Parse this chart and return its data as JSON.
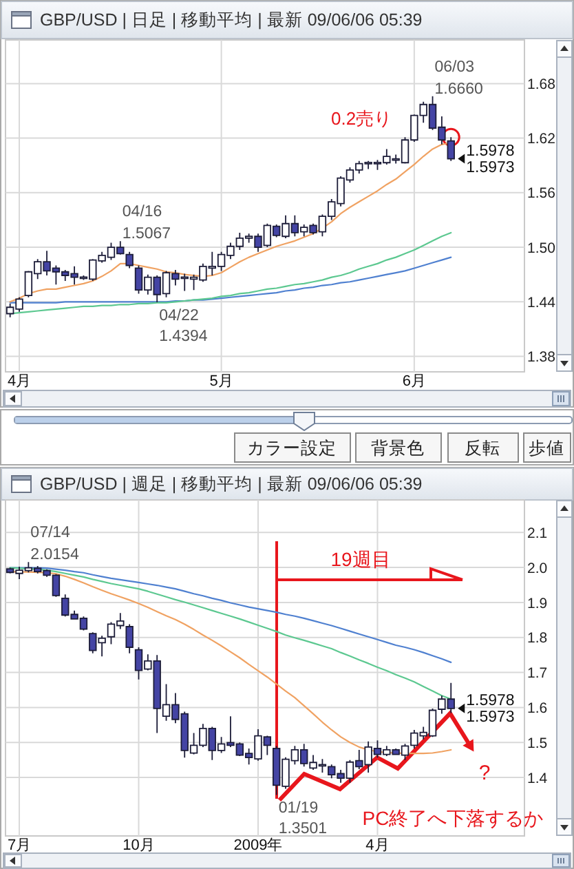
{
  "chart_data": [
    {
      "type": "candlestick",
      "title": "GBP/USD | 日足 | 移動平均 | 最新 09/06/06 05:39",
      "categories": [
        null,
        "4月",
        null,
        null,
        null,
        null,
        null,
        null,
        null,
        null,
        null,
        null,
        null,
        null,
        null,
        null,
        null,
        null,
        null,
        null,
        null,
        null,
        null,
        "5月",
        null,
        null,
        null,
        null,
        null,
        null,
        null,
        null,
        null,
        null,
        null,
        null,
        null,
        null,
        null,
        null,
        null,
        null,
        null,
        null,
        "6月",
        null,
        null,
        null,
        null
      ],
      "ohlc": [
        [
          1.427,
          1.438,
          1.423,
          1.434
        ],
        [
          1.432,
          1.445,
          1.429,
          1.443
        ],
        [
          1.447,
          1.474,
          1.445,
          1.473
        ],
        [
          1.471,
          1.487,
          1.465,
          1.484
        ],
        [
          1.484,
          1.496,
          1.469,
          1.474
        ],
        [
          1.477,
          1.48,
          1.459,
          1.473
        ],
        [
          1.473,
          1.475,
          1.463,
          1.469
        ],
        [
          1.471,
          1.479,
          1.459,
          1.467
        ],
        [
          1.466,
          1.469,
          1.464,
          1.467
        ],
        [
          1.465,
          1.487,
          1.463,
          1.486
        ],
        [
          1.485,
          1.495,
          1.483,
          1.491
        ],
        [
          1.489,
          1.505,
          1.486,
          1.5
        ],
        [
          1.5,
          1.5067,
          1.492,
          1.493
        ],
        [
          1.492,
          1.495,
          1.477,
          1.48
        ],
        [
          1.477,
          1.48,
          1.449,
          1.453
        ],
        [
          1.453,
          1.47,
          1.448,
          1.467
        ],
        [
          1.467,
          1.469,
          1.4394,
          1.448
        ],
        [
          1.449,
          1.474,
          1.445,
          1.472
        ],
        [
          1.471,
          1.475,
          1.458,
          1.465
        ],
        [
          1.466,
          1.471,
          1.452,
          1.467
        ],
        [
          1.465,
          1.47,
          1.453,
          1.467
        ],
        [
          1.464,
          1.482,
          1.462,
          1.479
        ],
        [
          1.477,
          1.495,
          1.469,
          1.479
        ],
        [
          1.479,
          1.495,
          1.474,
          1.492
        ],
        [
          1.491,
          1.505,
          1.487,
          1.501
        ],
        [
          1.501,
          1.516,
          1.497,
          1.51
        ],
        [
          1.51,
          1.515,
          1.505,
          1.512
        ],
        [
          1.512,
          1.515,
          1.495,
          1.5
        ],
        [
          1.502,
          1.526,
          1.5,
          1.524
        ],
        [
          1.523,
          1.525,
          1.511,
          1.513
        ],
        [
          1.512,
          1.535,
          1.51,
          1.526
        ],
        [
          1.526,
          1.535,
          1.512,
          1.516
        ],
        [
          1.517,
          1.525,
          1.512,
          1.522
        ],
        [
          1.524,
          1.526,
          1.514,
          1.516
        ],
        [
          1.517,
          1.536,
          1.512,
          1.534
        ],
        [
          1.534,
          1.553,
          1.53,
          1.55
        ],
        [
          1.548,
          1.578,
          1.545,
          1.576
        ],
        [
          1.574,
          1.588,
          1.571,
          1.585
        ],
        [
          1.585,
          1.595,
          1.581,
          1.592
        ],
        [
          1.592,
          1.595,
          1.586,
          1.593
        ],
        [
          1.592,
          1.596,
          1.585,
          1.593
        ],
        [
          1.593,
          1.608,
          1.591,
          1.6
        ],
        [
          1.596,
          1.602,
          1.592,
          1.597
        ],
        [
          1.593,
          1.621,
          1.592,
          1.618
        ],
        [
          1.618,
          1.646,
          1.616,
          1.645
        ],
        [
          1.645,
          1.66,
          1.637,
          1.657
        ],
        [
          1.657,
          1.666,
          1.629,
          1.631
        ],
        [
          1.632,
          1.644,
          1.613,
          1.618
        ],
        [
          1.617,
          1.621,
          1.595,
          1.5973
        ]
      ],
      "colors": [
        "#ffffff",
        "#ffffff",
        "#ffffff",
        "#ffffff",
        "#4444a4",
        "#4444a4",
        "#4444a4",
        "#4444a4",
        "#ffffff",
        "#ffffff",
        "#ffffff",
        "#ffffff",
        "#4444a4",
        "#4444a4",
        "#4444a4",
        "#ffffff",
        "#4444a4",
        "#ffffff",
        "#4444a4",
        "#ffffff",
        "#ffffff",
        "#ffffff",
        "#ffffff",
        "#ffffff",
        "#ffffff",
        "#ffffff",
        "#ffffff",
        "#4444a4",
        "#ffffff",
        "#4444a4",
        "#ffffff",
        "#4444a4",
        "#ffffff",
        "#4444a4",
        "#ffffff",
        "#ffffff",
        "#ffffff",
        "#ffffff",
        "#ffffff",
        "#ffffff",
        "#ffffff",
        "#ffffff",
        "#ffffff",
        "#ffffff",
        "#ffffff",
        "#ffffff",
        "#4444a4",
        "#4444a4",
        "#4444a4"
      ],
      "series": [
        {
          "type": "line",
          "color": "#4f80d0",
          "values": [
            1.439,
            1.439,
            1.439,
            1.439,
            1.439,
            1.439,
            1.44,
            1.44,
            1.44,
            1.44,
            1.44,
            1.44,
            1.44,
            1.44,
            1.44,
            1.44,
            1.44,
            1.44,
            1.441,
            1.441,
            1.442,
            1.442,
            1.443,
            1.444,
            1.445,
            1.446,
            1.447,
            1.448,
            1.449,
            1.45,
            1.452,
            1.453,
            1.455,
            1.456,
            1.458,
            1.459,
            1.461,
            1.462,
            1.464,
            1.466,
            1.468,
            1.47,
            1.472,
            1.474,
            1.477,
            1.48,
            1.483,
            1.486,
            1.489
          ]
        },
        {
          "type": "line",
          "color": "#5cc890",
          "values": [
            1.427,
            1.428,
            1.429,
            1.43,
            1.431,
            1.432,
            1.433,
            1.434,
            1.435,
            1.435,
            1.436,
            1.436,
            1.437,
            1.437,
            1.438,
            1.438,
            1.439,
            1.439,
            1.44,
            1.441,
            1.442,
            1.443,
            1.444,
            1.446,
            1.447,
            1.449,
            1.45,
            1.452,
            1.454,
            1.455,
            1.457,
            1.459,
            1.46,
            1.462,
            1.464,
            1.467,
            1.469,
            1.472,
            1.476,
            1.479,
            1.482,
            1.486,
            1.489,
            1.493,
            1.497,
            1.502,
            1.507,
            1.512,
            1.516
          ]
        },
        {
          "type": "line",
          "color": "#f0a262",
          "values": [
            1.44,
            1.444,
            1.449,
            1.452,
            1.454,
            1.454,
            1.456,
            1.458,
            1.46,
            1.463,
            1.468,
            1.474,
            1.482,
            1.482,
            1.48,
            1.478,
            1.476,
            1.473,
            1.472,
            1.47,
            1.469,
            1.468,
            1.469,
            1.472,
            1.478,
            1.484,
            1.489,
            1.493,
            1.497,
            1.501,
            1.504,
            1.507,
            1.511,
            1.515,
            1.521,
            1.528,
            1.537,
            1.544,
            1.55,
            1.556,
            1.562,
            1.569,
            1.575,
            1.583,
            1.591,
            1.6,
            1.608,
            1.613,
            1.615
          ]
        }
      ],
      "ylim": [
        1.363,
        1.728
      ],
      "yticks": [
        1.38,
        1.44,
        {
          "value": 1.5,
          "label": "1.50"
        },
        1.56,
        1.62,
        1.68
      ],
      "grid": true,
      "annotations": [
        "04/16\n1.5067",
        "04/22\n1.4394",
        "06/03\n1.6660",
        "0.2売り",
        "1.5978",
        "1.5973"
      ]
    },
    {
      "type": "other",
      "annotations": [
        "カラー設定",
        "背景色",
        "反転",
        "歩値"
      ]
    },
    {
      "type": "candlestick",
      "title": "GBP/USD | 週足 | 移動平均 | 最新 09/06/06 05:39",
      "categories": [
        null,
        "7月",
        null,
        null,
        null,
        null,
        null,
        null,
        null,
        null,
        null,
        null,
        null,
        null,
        "10月",
        null,
        null,
        null,
        null,
        null,
        null,
        null,
        null,
        null,
        null,
        null,
        null,
        "2009年",
        null,
        null,
        null,
        null,
        null,
        null,
        null,
        null,
        null,
        null,
        null,
        null,
        "4月",
        null,
        null,
        null,
        null,
        null,
        null,
        null,
        null
      ],
      "ohlc": [
        [
          1.996,
          1.999,
          1.983,
          1.986
        ],
        [
          1.983,
          2.002,
          1.967,
          1.992
        ],
        [
          1.991,
          2.0154,
          1.986,
          1.999
        ],
        [
          1.998,
          2.004,
          1.983,
          1.988
        ],
        [
          1.991,
          1.995,
          1.973,
          1.978
        ],
        [
          1.978,
          1.981,
          1.916,
          1.92
        ],
        [
          1.912,
          1.923,
          1.86,
          1.864
        ],
        [
          1.866,
          1.877,
          1.851,
          1.853
        ],
        [
          1.855,
          1.86,
          1.82,
          1.824
        ],
        [
          1.811,
          1.815,
          1.755,
          1.763
        ],
        [
          1.785,
          1.805,
          1.746,
          1.798
        ],
        [
          1.802,
          1.844,
          1.781,
          1.838
        ],
        [
          1.834,
          1.87,
          1.824,
          1.847
        ],
        [
          1.831,
          1.838,
          1.755,
          1.772
        ],
        [
          1.765,
          1.772,
          1.68,
          1.706
        ],
        [
          1.71,
          1.752,
          1.706,
          1.733
        ],
        [
          1.733,
          1.75,
          1.527,
          1.597
        ],
        [
          1.575,
          1.667,
          1.562,
          1.608
        ],
        [
          1.608,
          1.641,
          1.555,
          1.566
        ],
        [
          1.582,
          1.588,
          1.457,
          1.477
        ],
        [
          1.47,
          1.527,
          1.466,
          1.492
        ],
        [
          1.492,
          1.553,
          1.487,
          1.54
        ],
        [
          1.54,
          1.545,
          1.45,
          1.477
        ],
        [
          1.477,
          1.516,
          1.47,
          1.496
        ],
        [
          1.5,
          1.575,
          1.487,
          1.492
        ],
        [
          1.496,
          1.5,
          1.461,
          1.464
        ],
        [
          1.469,
          1.483,
          1.437,
          1.457
        ],
        [
          1.453,
          1.538,
          1.448,
          1.519
        ],
        [
          1.516,
          1.519,
          1.464,
          1.492
        ],
        [
          1.483,
          1.49,
          1.3501,
          1.378
        ],
        [
          1.375,
          1.458,
          1.368,
          1.452
        ],
        [
          1.448,
          1.49,
          1.437,
          1.479
        ],
        [
          1.479,
          1.496,
          1.431,
          1.44
        ],
        [
          1.427,
          1.464,
          1.422,
          1.443
        ],
        [
          1.433,
          1.453,
          1.414,
          1.437
        ],
        [
          1.431,
          1.437,
          1.398,
          1.408
        ],
        [
          1.411,
          1.422,
          1.385,
          1.398
        ],
        [
          1.398,
          1.45,
          1.385,
          1.444
        ],
        [
          1.448,
          1.479,
          1.424,
          1.431
        ],
        [
          1.437,
          1.503,
          1.414,
          1.487
        ],
        [
          1.483,
          1.506,
          1.457,
          1.466
        ],
        [
          1.466,
          1.49,
          1.461,
          1.479
        ],
        [
          1.479,
          1.483,
          1.464,
          1.466
        ],
        [
          1.464,
          1.496,
          1.45,
          1.49
        ],
        [
          1.492,
          1.536,
          1.483,
          1.527
        ],
        [
          1.519,
          1.545,
          1.509,
          1.529
        ],
        [
          1.519,
          1.597,
          1.516,
          1.592
        ],
        [
          1.595,
          1.634,
          1.582,
          1.624
        ],
        [
          1.624,
          1.67,
          1.584,
          1.5973
        ]
      ],
      "colors": [
        "#4444a4",
        "#ffffff",
        "#ffffff",
        "#4444a4",
        "#4444a4",
        "#4444a4",
        "#4444a4",
        "#4444a4",
        "#4444a4",
        "#4444a4",
        "#ffffff",
        "#ffffff",
        "#ffffff",
        "#4444a4",
        "#4444a4",
        "#ffffff",
        "#4444a4",
        "#ffffff",
        "#4444a4",
        "#4444a4",
        "#ffffff",
        "#ffffff",
        "#4444a4",
        "#ffffff",
        "#4444a4",
        "#4444a4",
        "#4444a4",
        "#ffffff",
        "#4444a4",
        "#4444a4",
        "#ffffff",
        "#ffffff",
        "#4444a4",
        "#ffffff",
        "#ffffff",
        "#4444a4",
        "#4444a4",
        "#ffffff",
        "#4444a4",
        "#ffffff",
        "#4444a4",
        "#ffffff",
        "#4444a4",
        "#ffffff",
        "#ffffff",
        "#ffffff",
        "#ffffff",
        "#ffffff",
        "#4444a4"
      ],
      "series": [
        {
          "type": "line",
          "color": "#4f80d0",
          "values": [
            1.999,
            1.999,
            1.999,
            1.999,
            1.998,
            1.995,
            1.992,
            1.988,
            1.985,
            1.979,
            1.974,
            1.969,
            1.965,
            1.961,
            1.957,
            1.953,
            1.949,
            1.944,
            1.939,
            1.932,
            1.925,
            1.919,
            1.912,
            1.906,
            1.899,
            1.893,
            1.887,
            1.882,
            1.877,
            1.872,
            1.866,
            1.861,
            1.855,
            1.848,
            1.841,
            1.834,
            1.826,
            1.818,
            1.81,
            1.802,
            1.794,
            1.786,
            1.778,
            1.772,
            1.765,
            1.757,
            1.748,
            1.739,
            1.729
          ]
        },
        {
          "type": "line",
          "color": "#5cc890",
          "values": [
            1.999,
            1.998,
            1.996,
            1.995,
            1.992,
            1.988,
            1.983,
            1.978,
            1.973,
            1.966,
            1.96,
            1.954,
            1.949,
            1.944,
            1.939,
            1.932,
            1.924,
            1.916,
            1.908,
            1.901,
            1.893,
            1.885,
            1.877,
            1.869,
            1.861,
            1.853,
            1.844,
            1.835,
            1.826,
            1.817,
            1.807,
            1.799,
            1.792,
            1.784,
            1.776,
            1.768,
            1.757,
            1.747,
            1.736,
            1.726,
            1.715,
            1.705,
            1.694,
            1.684,
            1.673,
            1.66,
            1.647,
            1.634,
            1.624
          ]
        },
        {
          "type": "line",
          "color": "#f0a262",
          "values": [
            1.988,
            1.987,
            1.987,
            1.986,
            1.985,
            1.982,
            1.975,
            1.966,
            1.956,
            1.945,
            1.935,
            1.925,
            1.916,
            1.907,
            1.897,
            1.886,
            1.874,
            1.862,
            1.851,
            1.838,
            1.823,
            1.807,
            1.792,
            1.776,
            1.759,
            1.742,
            1.723,
            1.705,
            1.687,
            1.667,
            1.647,
            1.628,
            1.605,
            1.582,
            1.558,
            1.536,
            1.516,
            1.5,
            1.487,
            1.479,
            1.474,
            1.471,
            1.47,
            1.469,
            1.469,
            1.469,
            1.47,
            1.474,
            1.479
          ]
        }
      ],
      "ylim": [
        1.233,
        2.193
      ],
      "yticks": [
        1.4,
        1.5,
        1.6,
        1.7,
        1.8,
        1.9,
        {
          "value": 2,
          "label": "2.0"
        },
        2.1
      ],
      "grid": true,
      "annotations": [
        "07/14\n2.0154",
        "01/19\n1.3501",
        "19週目",
        "1.5978",
        "1.5973",
        "?",
        "PC終了へ下落するか"
      ]
    }
  ]
}
